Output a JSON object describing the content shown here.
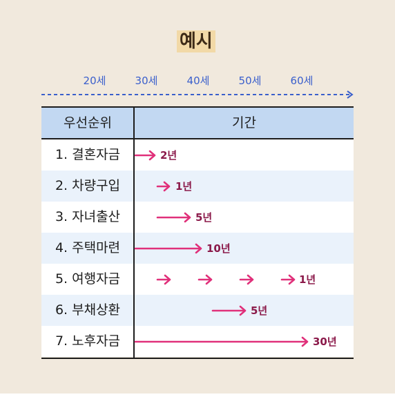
{
  "title": "예시",
  "ages": [
    "20세",
    "30세",
    "40세",
    "50세",
    "60세"
  ],
  "table": {
    "header_priority": "우선순위",
    "header_period": "기간",
    "rows": [
      {
        "label": "1. 결혼자금",
        "duration": "2년"
      },
      {
        "label": "2. 차량구입",
        "duration": "1년"
      },
      {
        "label": "3. 자녀출산",
        "duration": "5년"
      },
      {
        "label": "4. 주택마련",
        "duration": "10년"
      },
      {
        "label": "5. 여행자금",
        "duration": "1년"
      },
      {
        "label": "6. 부채상환",
        "duration": "5년"
      },
      {
        "label": "7. 노후자금",
        "duration": "30년"
      }
    ]
  },
  "colors": {
    "background": "#f1e9dd",
    "title_highlight": "#f2d9a7",
    "timeline": "#3a5fcc",
    "header_bg": "#c2d8f2",
    "alt_row_bg": "#eaf2fb",
    "arrow": "#e0307a",
    "duration_text": "#8b1a4a"
  }
}
